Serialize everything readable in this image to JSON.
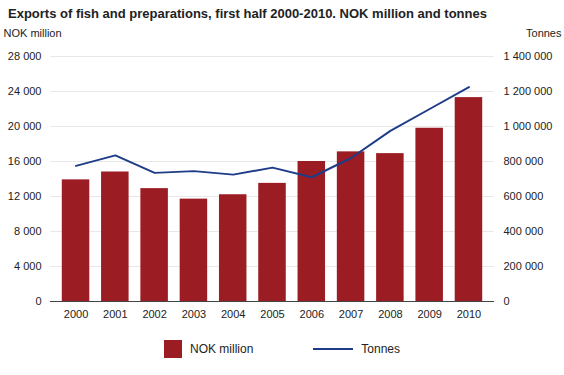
{
  "chart_data": {
    "type": "bar",
    "title": "Exports of fish and preparations, first half 2000-2010. NOK million and tonnes",
    "categories": [
      "2000",
      "2001",
      "2002",
      "2003",
      "2004",
      "2005",
      "2006",
      "2007",
      "2008",
      "2009",
      "2010"
    ],
    "series": [
      {
        "name": "NOK million",
        "type": "bar",
        "color": "#9b1c22",
        "values": [
          13900,
          14800,
          12900,
          11700,
          12200,
          13500,
          16000,
          17100,
          16900,
          19800,
          23300
        ]
      },
      {
        "name": "Tonnes",
        "type": "line",
        "color": "#1f3c88",
        "axis": "y2",
        "values": [
          775000,
          835000,
          735000,
          745000,
          725000,
          765000,
          710000,
          820000,
          975000,
          1100000,
          1225000
        ]
      }
    ],
    "ylabel": "NOK million",
    "y2label": "Tonnes",
    "ylim": [
      0,
      28000
    ],
    "yticks": [
      0,
      {
        "value": 4000,
        "label": "4 000"
      },
      {
        "value": 8000,
        "label": "8 000"
      },
      {
        "value": 12000,
        "label": "12 000"
      },
      {
        "value": 16000,
        "label": "16 000"
      },
      {
        "value": 20000,
        "label": "20 000"
      },
      {
        "value": 24000,
        "label": "24 000"
      },
      {
        "value": 28000,
        "label": "28 000"
      }
    ],
    "y2lim": [
      0,
      1400000
    ],
    "y2ticks": [
      0,
      {
        "value": 200000,
        "label": "200 000"
      },
      {
        "value": 400000,
        "label": "400 000"
      },
      {
        "value": 600000,
        "label": "600 000"
      },
      {
        "value": 800000,
        "label": "800 000"
      },
      {
        "value": 1000000,
        "label": "1 000 000"
      },
      {
        "value": 1200000,
        "label": "1 200 000"
      },
      {
        "value": 1400000,
        "label": "1 400 000"
      }
    ],
    "grid": true,
    "legend": "bottom"
  }
}
